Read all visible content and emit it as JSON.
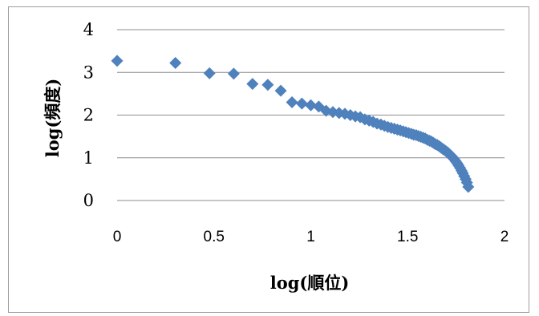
{
  "chart_data": {
    "type": "scatter",
    "xlabel": "log(順位)",
    "ylabel": "log(頻度)",
    "xlim": [
      0,
      2
    ],
    "ylim": [
      0,
      4
    ],
    "x_ticks": [
      "0",
      "0.5",
      "1",
      "1.5",
      "2"
    ],
    "y_ticks": [
      "0",
      "1",
      "2",
      "3",
      "4"
    ],
    "grid": "horizontal",
    "legend": "none",
    "marker": "diamond",
    "marker_color": "#4f81bd",
    "series": [
      {
        "x": [
          0,
          0.301,
          0.477,
          0.602,
          0.699,
          0.778,
          0.845,
          0.903,
          0.954,
          1.0,
          1.041,
          1.079,
          1.114,
          1.146,
          1.176,
          1.204,
          1.23,
          1.255,
          1.279,
          1.301,
          1.322,
          1.342,
          1.362,
          1.38,
          1.398,
          1.415,
          1.431,
          1.447,
          1.462,
          1.477,
          1.491,
          1.505,
          1.519,
          1.531,
          1.544,
          1.556,
          1.568,
          1.58,
          1.591,
          1.602,
          1.613,
          1.623,
          1.633,
          1.643,
          1.653,
          1.663,
          1.672,
          1.681,
          1.69,
          1.699,
          1.708,
          1.716,
          1.724,
          1.732,
          1.74,
          1.748,
          1.756,
          1.763,
          1.771,
          1.778,
          1.785,
          1.792,
          1.799,
          1.806,
          1.813
        ],
        "y": [
          3.27,
          3.22,
          2.98,
          2.97,
          2.73,
          2.71,
          2.57,
          2.3,
          2.27,
          2.23,
          2.2,
          2.1,
          2.07,
          2.05,
          2.03,
          2.0,
          1.97,
          1.95,
          1.9,
          1.87,
          1.84,
          1.8,
          1.78,
          1.75,
          1.72,
          1.7,
          1.68,
          1.66,
          1.64,
          1.62,
          1.6,
          1.58,
          1.56,
          1.54,
          1.53,
          1.51,
          1.49,
          1.47,
          1.45,
          1.42,
          1.4,
          1.38,
          1.35,
          1.32,
          1.3,
          1.27,
          1.24,
          1.21,
          1.18,
          1.15,
          1.12,
          1.08,
          1.05,
          1.01,
          0.97,
          0.92,
          0.87,
          0.82,
          0.76,
          0.7,
          0.64,
          0.57,
          0.5,
          0.42,
          0.32
        ]
      }
    ]
  }
}
